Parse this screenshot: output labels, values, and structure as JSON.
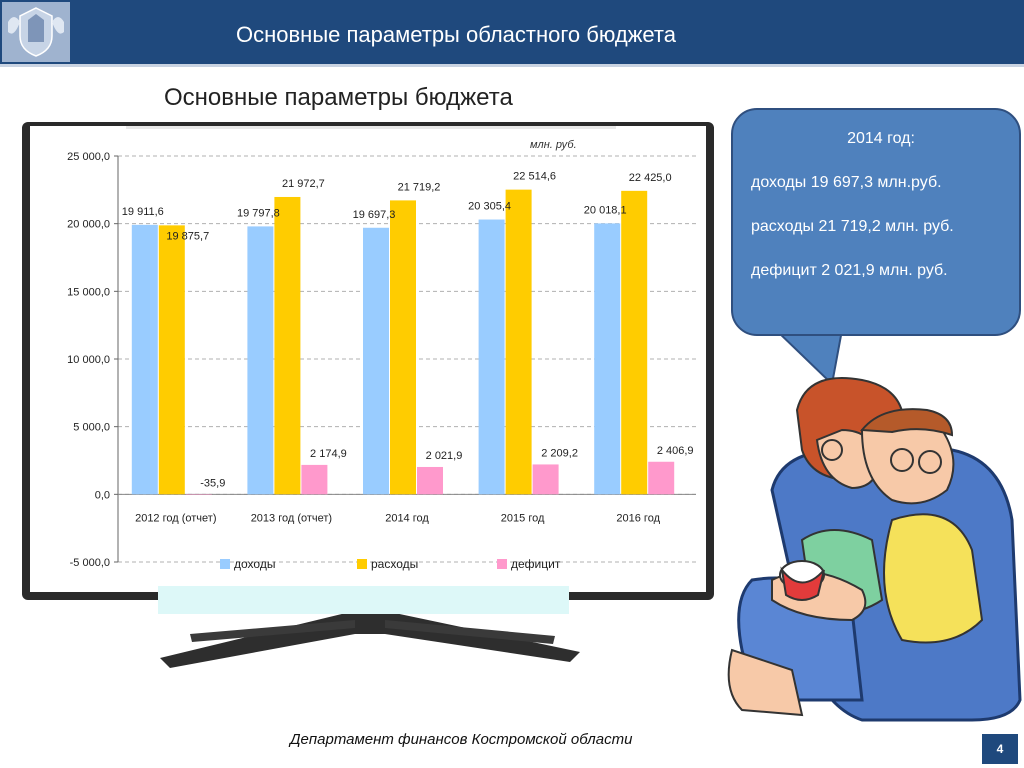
{
  "header": {
    "title": "Основные параметры областного бюджета"
  },
  "slide": {
    "chart_title": "Основные параметры бюджета"
  },
  "chart_data": {
    "type": "bar",
    "title": "Основные параметры бюджета",
    "unit": "млн. руб.",
    "categories": [
      "2012 год (отчет)",
      "2013 год (отчет)",
      "2014 год",
      "2015 год",
      "2016 год"
    ],
    "series": [
      {
        "name": "доходы",
        "color": "#99ccff",
        "values": [
          19911.6,
          19797.8,
          19697.3,
          20305.4,
          20018.1
        ],
        "labels": [
          "19 911,6",
          "19 797,8",
          "19 697,3",
          "20 305,4",
          "20 018,1"
        ]
      },
      {
        "name": "расходы",
        "color": "#ffcc00",
        "values": [
          19875.7,
          21972.7,
          21719.2,
          22514.6,
          22425.0
        ],
        "labels": [
          "19 875,7",
          "21 972,7",
          "21 719,2",
          "22 514,6",
          "22 425,0"
        ]
      },
      {
        "name": "дефицит",
        "color": "#ff99cc",
        "values": [
          -35.9,
          2174.9,
          2021.9,
          2209.2,
          2406.9
        ],
        "labels": [
          "-35,9",
          "2 174,9",
          "2 021,9",
          "2 209,2",
          "2 406,9"
        ]
      }
    ],
    "yticks": [
      25000,
      20000,
      15000,
      10000,
      5000,
      0,
      -5000
    ],
    "ytick_labels": [
      "25 000,0",
      "20 000,0",
      "15 000,0",
      "10 000,0",
      "5 000,0",
      "0,0",
      "-5 000,0"
    ],
    "ylim": [
      -5000,
      25000
    ],
    "grid": true,
    "legend": "bottom"
  },
  "bubble": {
    "heading": "2014 год:",
    "income": "доходы 19 697,3 млн.руб.",
    "expenses": "расходы 21 719,2 млн. руб.",
    "deficit": "дефицит 2 021,9 млн. руб.",
    "color": "#4f81bd"
  },
  "footer": {
    "text": "Департамент финансов  Костромской области",
    "page": "4"
  }
}
